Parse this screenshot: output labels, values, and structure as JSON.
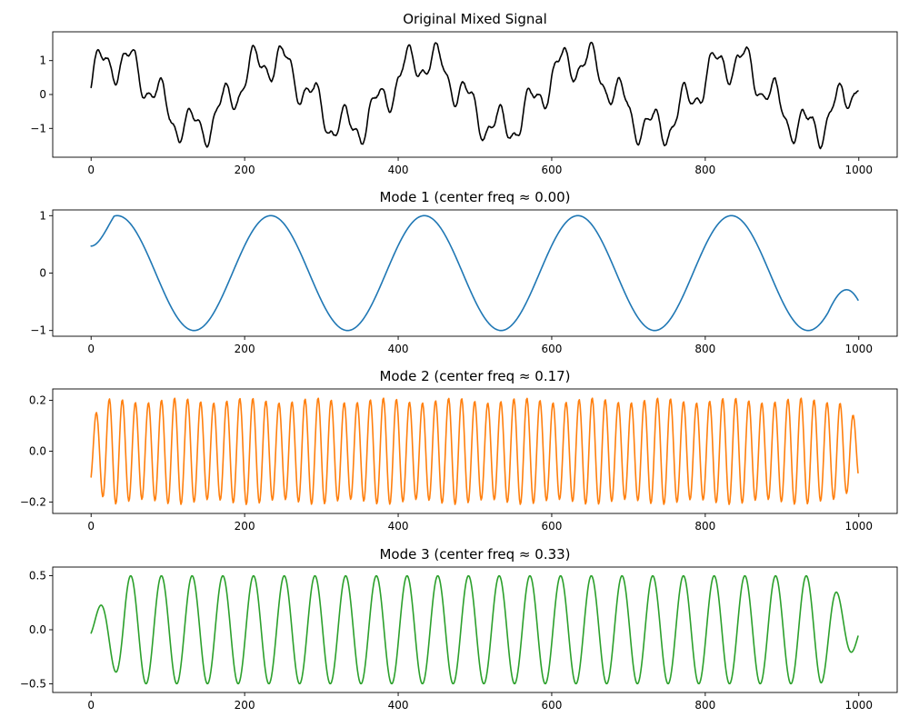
{
  "chart_data": [
    {
      "type": "line",
      "title": "Original Mixed Signal",
      "xlabel": "",
      "ylabel": "",
      "xlim": [
        -50,
        1050
      ],
      "ylim": [
        -1.85,
        1.85
      ],
      "xticks": [
        0,
        200,
        400,
        600,
        800,
        1000
      ],
      "yticks": [
        -1,
        0,
        1
      ],
      "ytick_labels": [
        "−1",
        "0",
        "1"
      ],
      "grid": false,
      "color": "#000000",
      "series": [
        {
          "x_range": [
            0,
            999
          ],
          "components": [
            {
              "amplitude": 1.0,
              "period": 200,
              "phase": 0.5
            },
            {
              "amplitude": 0.2,
              "period": 17,
              "phase": -0.9
            },
            {
              "amplitude": 0.5,
              "period": 40,
              "phase": -0.25
            }
          ],
          "noise": 0.06
        }
      ]
    },
    {
      "type": "line",
      "title": "Mode 1 (center freq ≈ 0.00)",
      "xlabel": "",
      "ylabel": "",
      "xlim": [
        -50,
        1050
      ],
      "ylim": [
        -1.1,
        1.1
      ],
      "xticks": [
        0,
        200,
        400,
        600,
        800,
        1000
      ],
      "yticks": [
        -1,
        0,
        1
      ],
      "ytick_labels": [
        "−1",
        "0",
        "1"
      ],
      "grid": false,
      "color": "#1f77b4",
      "series": [
        {
          "x_range": [
            0,
            999
          ],
          "components": [
            {
              "amplitude": 1.0,
              "period": 200,
              "phase": 0.5
            }
          ],
          "edge_taper": [
            {
              "from": 0,
              "to": 30,
              "start_value": 0.47
            },
            {
              "from": 960,
              "to": 999,
              "end_value": -0.47
            }
          ]
        }
      ]
    },
    {
      "type": "line",
      "title": "Mode 2 (center freq ≈ 0.17)",
      "xlabel": "",
      "ylabel": "",
      "xlim": [
        -50,
        1050
      ],
      "ylim": [
        -0.245,
        0.245
      ],
      "xticks": [
        0,
        200,
        400,
        600,
        800,
        1000
      ],
      "yticks": [
        -0.2,
        0.0,
        0.2
      ],
      "ytick_labels": [
        "−0.2",
        "0.0",
        "0.2"
      ],
      "grid": false,
      "color": "#ff7f0e",
      "series": [
        {
          "x_range": [
            0,
            999
          ],
          "components": [
            {
              "amplitude": 0.2,
              "period": 17,
              "phase": -0.9
            }
          ],
          "amplitude_wobble": 0.01,
          "edge_taper": [
            {
              "from": 0,
              "to": 25,
              "start_factor": 0.65
            },
            {
              "from": 975,
              "to": 999,
              "end_factor": 0.6
            }
          ]
        }
      ]
    },
    {
      "type": "line",
      "title": "Mode 3 (center freq ≈ 0.33)",
      "xlabel": "",
      "ylabel": "",
      "xlim": [
        -50,
        1050
      ],
      "ylim": [
        -0.58,
        0.58
      ],
      "xticks": [
        0,
        200,
        400,
        600,
        800,
        1000
      ],
      "yticks": [
        -0.5,
        0.0,
        0.5
      ],
      "ytick_labels": [
        "−0.5",
        "0.0",
        "0.5"
      ],
      "grid": false,
      "color": "#2ca02c",
      "series": [
        {
          "x_range": [
            0,
            999
          ],
          "components": [
            {
              "amplitude": 0.5,
              "period": 40,
              "phase": -0.25
            }
          ],
          "edge_taper": [
            {
              "from": 0,
              "to": 45,
              "start_factor": 0.25
            },
            {
              "from": 950,
              "to": 999,
              "end_factor": 0.3
            }
          ]
        }
      ]
    }
  ]
}
